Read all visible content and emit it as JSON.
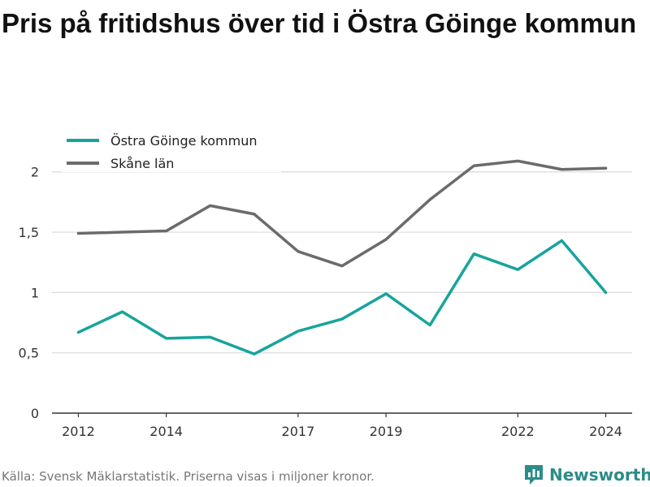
{
  "title": "Pris på fritidshus över tid i Östra Göinge kommun",
  "footer": {
    "source": "Källa: Svensk Mäklarstatistik. Priserna visas i miljoner kronor.",
    "brand": "Newsworthy"
  },
  "colors": {
    "ostra": "#17a49b",
    "skane": "#6b6b6b",
    "grid": "#d9d9d9",
    "axis": "#333333",
    "brand": "#2b8c8a"
  },
  "chart_data": {
    "type": "line",
    "x": [
      2012,
      2013,
      2014,
      2015,
      2016,
      2017,
      2018,
      2019,
      2020,
      2021,
      2022,
      2023,
      2024
    ],
    "x_tick_labels": [
      "2012",
      "2014",
      "2017",
      "2019",
      "2022",
      "2024"
    ],
    "x_tick_values": [
      2012,
      2014,
      2017,
      2019,
      2022,
      2024
    ],
    "y_tick_values": [
      0,
      0.5,
      1,
      1.5,
      2
    ],
    "y_tick_labels": [
      "0",
      "0,5",
      "1",
      "1,5",
      "2"
    ],
    "ylim": [
      0,
      2.2
    ],
    "xlim": [
      2011.4,
      2024.6
    ],
    "grid": true,
    "legend_position": "top-left",
    "series": [
      {
        "name": "Östra Göinge kommun",
        "color": "#17a49b",
        "values": [
          0.67,
          0.84,
          0.62,
          0.63,
          0.49,
          0.68,
          0.78,
          0.99,
          0.73,
          1.32,
          1.19,
          1.43,
          1.0
        ]
      },
      {
        "name": "Skåne län",
        "color": "#6b6b6b",
        "values": [
          1.49,
          1.5,
          1.51,
          1.72,
          1.65,
          1.34,
          1.22,
          1.44,
          1.77,
          2.05,
          2.09,
          2.02,
          2.03
        ]
      }
    ]
  }
}
